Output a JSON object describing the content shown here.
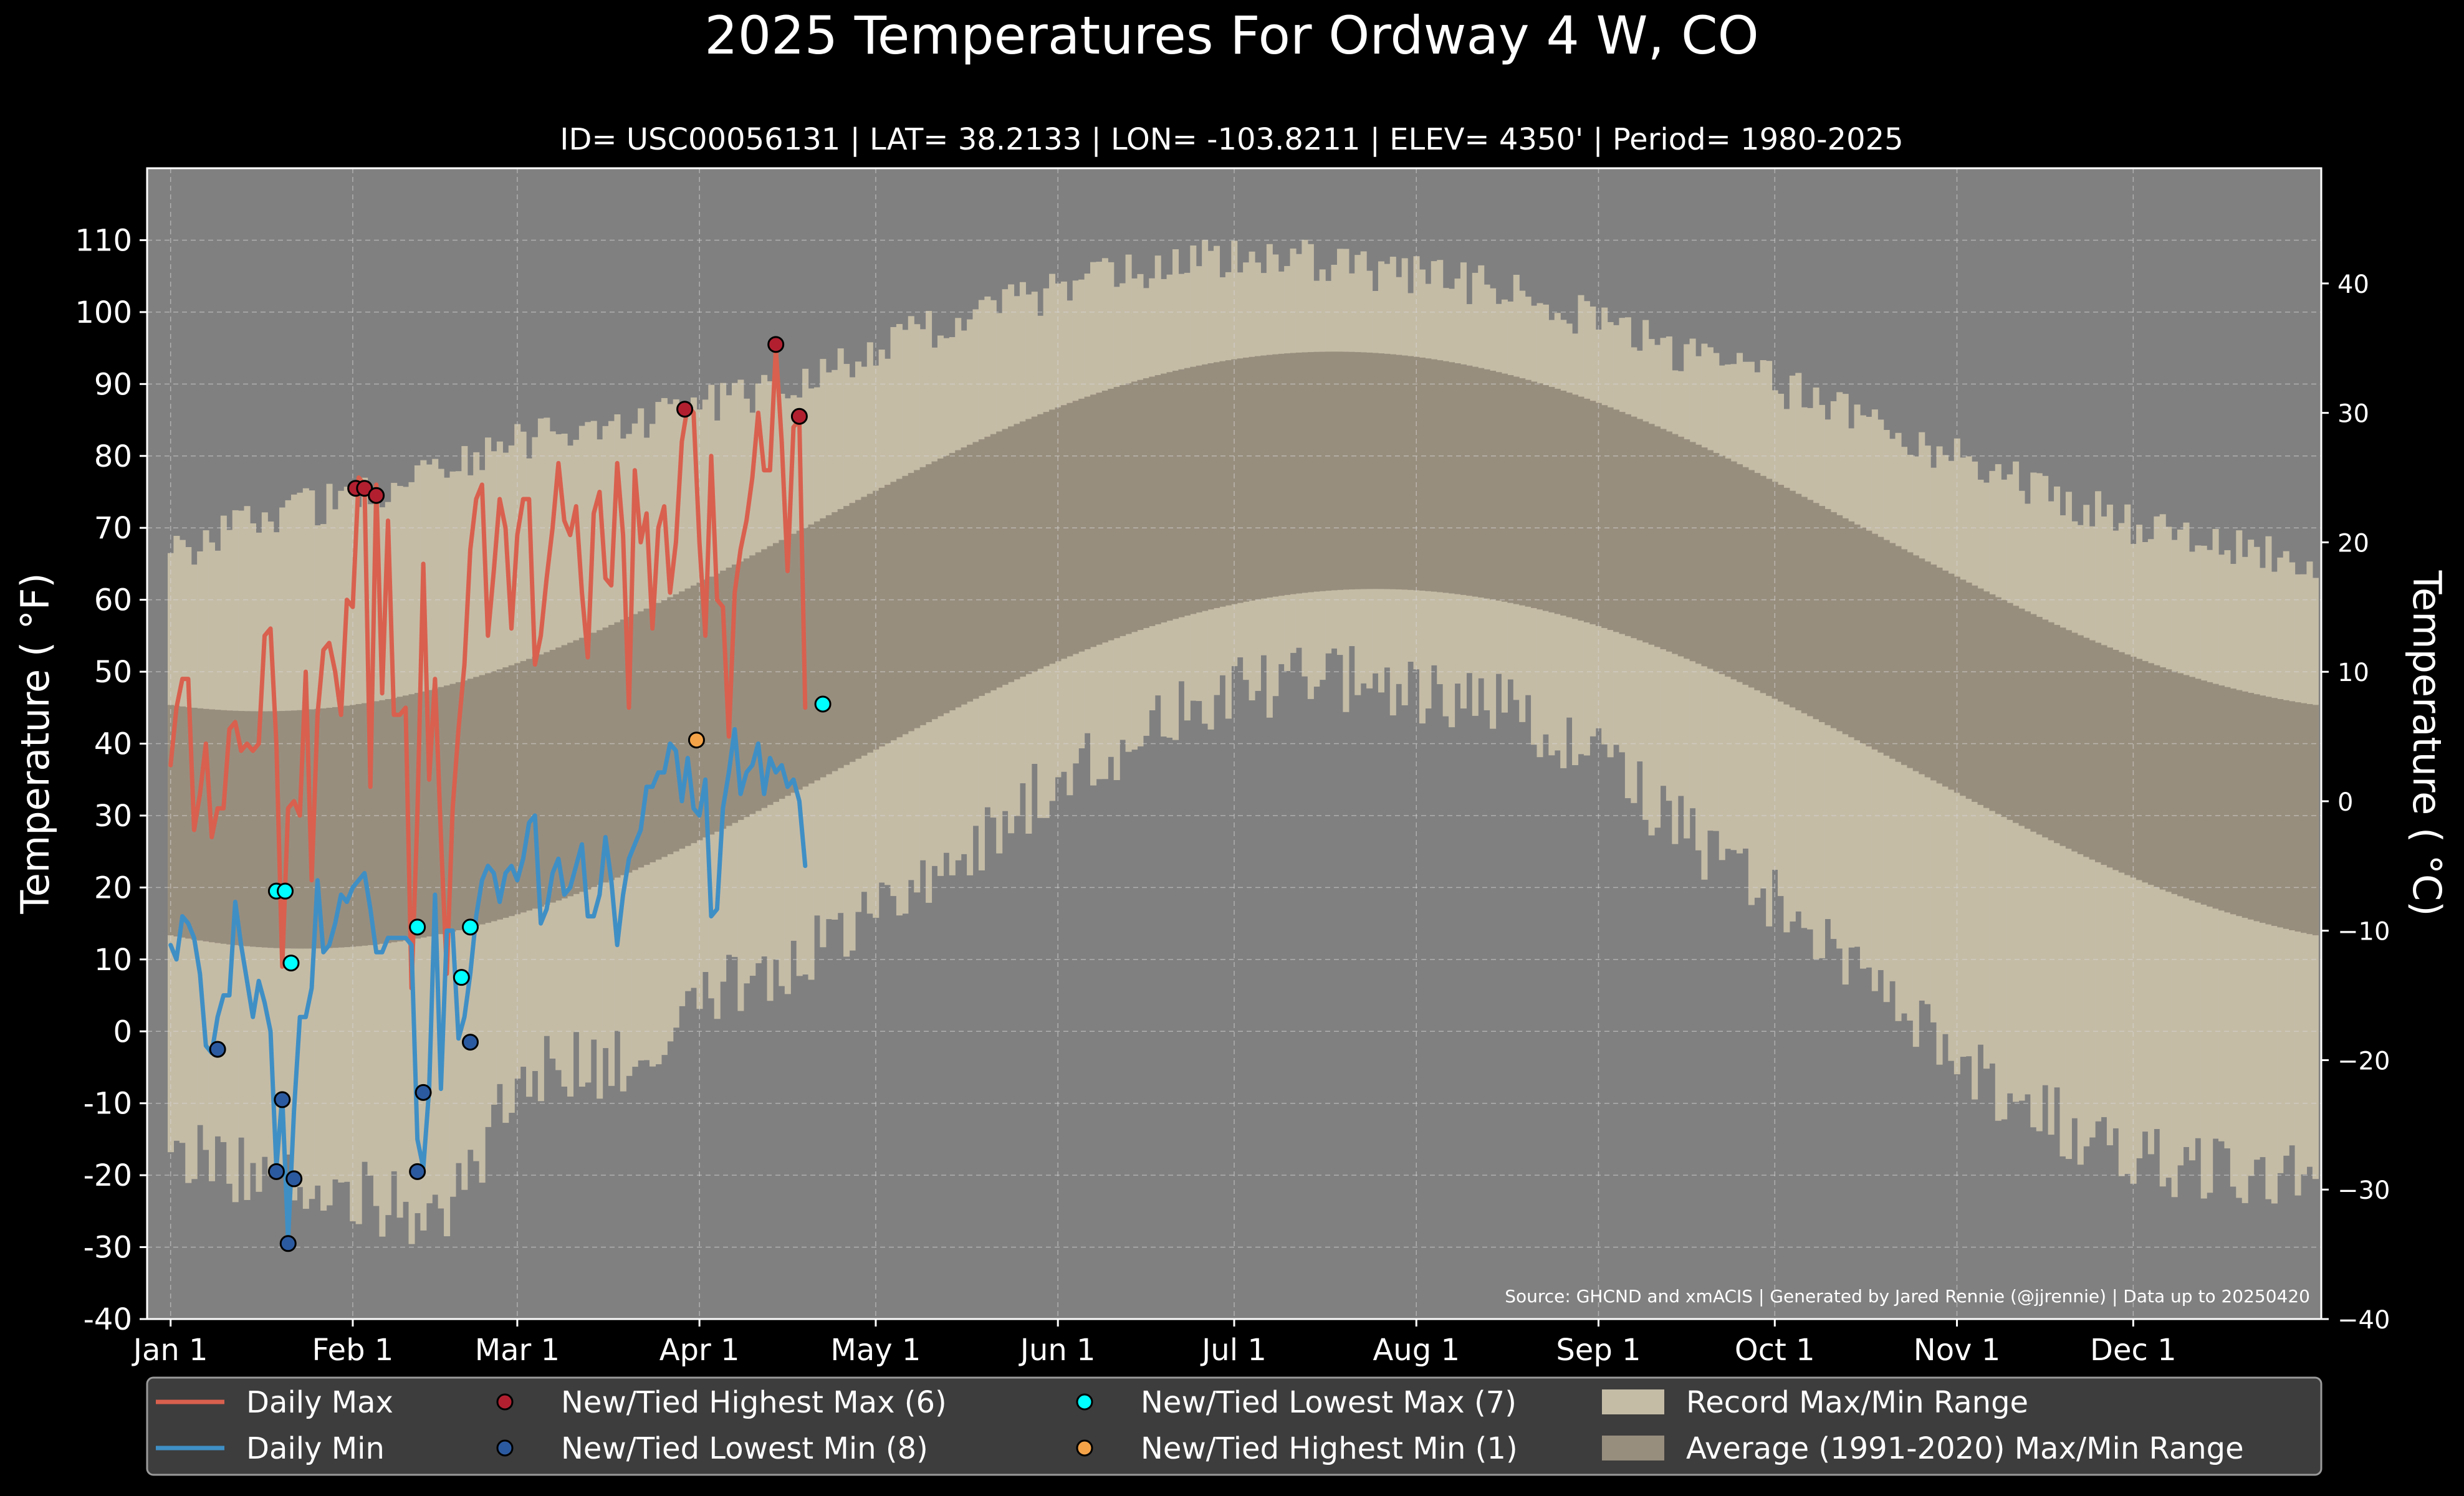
{
  "chart_data": {
    "type": "line",
    "title": "2025 Temperatures For Ordway 4 W, CO",
    "subtitle": "ID= USC00056131 | LAT= 38.2133 | LON= -103.8211 | ELEV= 4350' | Period= 1980-2025",
    "ylabel_left": "Temperature ( °F)",
    "ylabel_right": "Temperature ( °C)",
    "ylim_f": [
      -40,
      120
    ],
    "ylim_c": [
      -40,
      48.9
    ],
    "xlim_day": [
      -4,
      366
    ],
    "yticks_f": [
      -40,
      -30,
      -20,
      -10,
      0,
      10,
      20,
      30,
      40,
      50,
      60,
      70,
      80,
      90,
      100,
      110
    ],
    "yticks_c": [
      -40,
      -30,
      -20,
      -10,
      0,
      10,
      20,
      30,
      40
    ],
    "x_ticks": [
      {
        "day": 0,
        "label": "Jan 1"
      },
      {
        "day": 31,
        "label": "Feb 1"
      },
      {
        "day": 59,
        "label": "Mar 1"
      },
      {
        "day": 90,
        "label": "Apr 1"
      },
      {
        "day": 120,
        "label": "May 1"
      },
      {
        "day": 151,
        "label": "Jun 1"
      },
      {
        "day": 181,
        "label": "Jul 1"
      },
      {
        "day": 212,
        "label": "Aug 1"
      },
      {
        "day": 243,
        "label": "Sep 1"
      },
      {
        "day": 273,
        "label": "Oct 1"
      },
      {
        "day": 304,
        "label": "Nov 1"
      },
      {
        "day": 334,
        "label": "Dec 1"
      }
    ],
    "grid": true,
    "record_max_anchors": [
      [
        0,
        66
      ],
      [
        15,
        72
      ],
      [
        31,
        74
      ],
      [
        45,
        78
      ],
      [
        59,
        82
      ],
      [
        75,
        84
      ],
      [
        90,
        87
      ],
      [
        105,
        90
      ],
      [
        120,
        95
      ],
      [
        135,
        99
      ],
      [
        151,
        103
      ],
      [
        166,
        106
      ],
      [
        181,
        108
      ],
      [
        196,
        107
      ],
      [
        212,
        105
      ],
      [
        227,
        103
      ],
      [
        243,
        99
      ],
      [
        258,
        94
      ],
      [
        273,
        90
      ],
      [
        289,
        85
      ],
      [
        304,
        80
      ],
      [
        320,
        75
      ],
      [
        334,
        70
      ],
      [
        350,
        67
      ],
      [
        365,
        66
      ]
    ],
    "record_min_anchors": [
      [
        0,
        -17
      ],
      [
        15,
        -20
      ],
      [
        30,
        -22
      ],
      [
        40,
        -25
      ],
      [
        50,
        -23
      ],
      [
        59,
        -5
      ],
      [
        75,
        -5
      ],
      [
        90,
        5
      ],
      [
        105,
        10
      ],
      [
        120,
        18
      ],
      [
        135,
        25
      ],
      [
        151,
        35
      ],
      [
        166,
        42
      ],
      [
        181,
        47
      ],
      [
        196,
        50
      ],
      [
        212,
        47
      ],
      [
        227,
        45
      ],
      [
        243,
        38
      ],
      [
        258,
        28
      ],
      [
        273,
        18
      ],
      [
        289,
        8
      ],
      [
        304,
        -5
      ],
      [
        320,
        -12
      ],
      [
        334,
        -17
      ],
      [
        350,
        -20
      ],
      [
        365,
        -20
      ]
    ],
    "record_max_jitter": 3,
    "record_min_jitter": 5,
    "average_range": {
      "max_low_day": 0,
      "max_low": 44.5,
      "max_high_day": 198,
      "max_high": 94.5,
      "min_low_day": 15,
      "min_low": 11.5,
      "min_high_day": 205,
      "min_high": 61.5
    },
    "series": [
      {
        "name": "Daily Max",
        "color": "#d9604e",
        "start_day": 0,
        "values": [
          37,
          45,
          49,
          49,
          28,
          33,
          40,
          27,
          31,
          31,
          42,
          43,
          39,
          40,
          39,
          40,
          55,
          56,
          40,
          9,
          31,
          32,
          30,
          50,
          21,
          44,
          53,
          54,
          50,
          44,
          60,
          59,
          77,
          76,
          34,
          76,
          47,
          71,
          44,
          44,
          45,
          6,
          30,
          65,
          35,
          49,
          27,
          8,
          31,
          42,
          51,
          67,
          74,
          76,
          55,
          64,
          74,
          70,
          56,
          69,
          74,
          74,
          51,
          55,
          63,
          70,
          79,
          71,
          69,
          73,
          61,
          52,
          72,
          75,
          63,
          62,
          79,
          69,
          45,
          78,
          68,
          72,
          56,
          70,
          73,
          61,
          68,
          82,
          87,
          86,
          68,
          55,
          80,
          60,
          59,
          41,
          61,
          67,
          71,
          77,
          86,
          78,
          78,
          95,
          82,
          64,
          84,
          85,
          45
        ]
      },
      {
        "name": "Daily Min",
        "color": "#3f8fc5",
        "start_day": 0,
        "values": [
          12,
          10,
          16,
          15,
          13,
          8,
          -2,
          -3,
          2,
          5,
          5,
          18,
          12,
          7,
          2,
          7,
          4,
          0,
          -19,
          -9,
          -29,
          -11,
          2,
          2,
          6,
          21,
          11,
          12,
          15,
          19,
          18,
          20,
          21,
          22,
          17,
          11,
          11,
          13,
          13,
          13,
          13,
          12,
          -15,
          -19,
          -8,
          19,
          -8,
          14,
          14,
          -1,
          2,
          8,
          16,
          21,
          23,
          22,
          18,
          22,
          23,
          21,
          24,
          29,
          30,
          15,
          17,
          22,
          24,
          19,
          20,
          23,
          26,
          16,
          16,
          19,
          27,
          21,
          12,
          19,
          24,
          26,
          28,
          34,
          34,
          36,
          36,
          40,
          39,
          32,
          38,
          31,
          30,
          35,
          16,
          17,
          31,
          36,
          42,
          33,
          36,
          37,
          40,
          33,
          38,
          36,
          37,
          34,
          35,
          32,
          23
        ]
      }
    ],
    "markers": [
      {
        "category": "New/Tied Highest Max",
        "color": "#b22030",
        "points": [
          [
            31.5,
            75.5
          ],
          [
            33,
            75.5
          ],
          [
            35,
            74.5
          ],
          [
            87.5,
            86.5
          ],
          [
            103,
            95.5
          ],
          [
            107,
            85.5
          ]
        ]
      },
      {
        "category": "New/Tied Lowest Min",
        "color": "#2c5aa0",
        "points": [
          [
            8,
            -2.5
          ],
          [
            18,
            -19.5
          ],
          [
            19,
            -9.5
          ],
          [
            20,
            -29.5
          ],
          [
            21,
            -20.5
          ],
          [
            42,
            -19.5
          ],
          [
            43,
            -8.5
          ],
          [
            51,
            -1.5
          ]
        ]
      },
      {
        "category": "New/Tied Lowest Max",
        "color": "#00ffff",
        "points": [
          [
            18,
            19.5
          ],
          [
            19.5,
            19.5
          ],
          [
            20.5,
            9.5
          ],
          [
            42,
            14.5
          ],
          [
            49.5,
            7.5
          ],
          [
            51,
            14.5
          ],
          [
            111,
            45.5
          ]
        ]
      },
      {
        "category": "New/Tied Highest Min",
        "color": "#f4a348",
        "points": [
          [
            89.5,
            40.5
          ]
        ]
      }
    ],
    "legend_placement": "bottom",
    "legend": [
      {
        "label": "Daily Max",
        "kind": "line",
        "color": "#d9604e"
      },
      {
        "label": "Daily Min",
        "kind": "line",
        "color": "#3f8fc5"
      },
      {
        "label": "New/Tied Highest Max (6)",
        "kind": "dot",
        "color": "#b22030"
      },
      {
        "label": "New/Tied Lowest Min (8)",
        "kind": "dot",
        "color": "#2c5aa0"
      },
      {
        "label": "New/Tied Lowest Max (7)",
        "kind": "dot",
        "color": "#00ffff"
      },
      {
        "label": "New/Tied Highest Min (1)",
        "kind": "dot",
        "color": "#f4a348"
      },
      {
        "label": "Record Max/Min Range",
        "kind": "patch",
        "color": "#c5bca6"
      },
      {
        "label": "Average (1991-2020) Max/Min Range",
        "kind": "patch",
        "color": "#988e7e"
      }
    ],
    "source_note": "Source: GHCND and xmACIS | Generated by Jared Rennie (@jjrennie) | Data up to 20250420",
    "colors": {
      "background": "#000000",
      "plot_background": "#808080",
      "record_range": "#c5bca6",
      "average_range": "#988e7e",
      "legend_background": "#3d3d3d"
    }
  }
}
